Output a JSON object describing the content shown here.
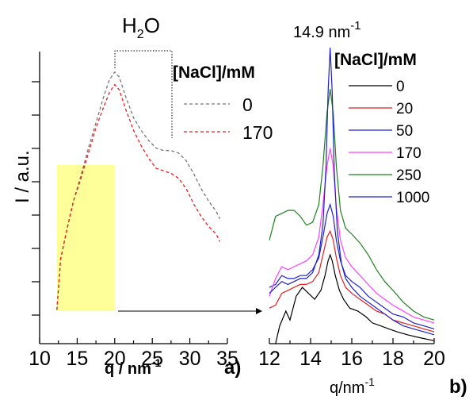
{
  "chart_data": [
    {
      "type": "line",
      "panel_label": "a)",
      "title": "H",
      "title_sub": "2",
      "title_tail": "O",
      "xlabel": "q / nm",
      "xlabel_sup": "-1",
      "ylabel": "I / a.u.",
      "xlim": [
        10,
        35
      ],
      "xticks": [
        10,
        15,
        20,
        25,
        30,
        35
      ],
      "y_ticks_labeled": false,
      "legend_title": "[NaCl]/mM",
      "legend_position": "top-right",
      "series": [
        {
          "name": "0",
          "color": "#777777",
          "dash": "4,3",
          "x": [
            12.3,
            12.8,
            13.5,
            14.5,
            15.5,
            16.5,
            17.5,
            18.5,
            19.3,
            20.0,
            20.6,
            21.5,
            22.5,
            23.5,
            24.5,
            25.5,
            26.5,
            27.5,
            28.5,
            29.5,
            30.5,
            31.5,
            32.5,
            33.5,
            34.0
          ],
          "y": [
            0.02,
            0.22,
            0.32,
            0.45,
            0.55,
            0.66,
            0.76,
            0.86,
            0.93,
            0.96,
            0.94,
            0.86,
            0.78,
            0.73,
            0.69,
            0.66,
            0.65,
            0.65,
            0.64,
            0.61,
            0.56,
            0.5,
            0.45,
            0.41,
            0.38
          ]
        },
        {
          "name": "170",
          "color": "#e02020",
          "dash": "4,3",
          "x": [
            12.3,
            12.8,
            13.5,
            14.5,
            15.5,
            16.5,
            17.5,
            18.5,
            19.3,
            20.0,
            20.6,
            21.5,
            22.5,
            23.5,
            24.5,
            25.5,
            26.5,
            27.5,
            28.5,
            29.5,
            30.5,
            31.5,
            32.5,
            33.5,
            34.0
          ],
          "y": [
            0.02,
            0.22,
            0.32,
            0.45,
            0.54,
            0.64,
            0.74,
            0.82,
            0.88,
            0.91,
            0.89,
            0.81,
            0.73,
            0.67,
            0.62,
            0.58,
            0.57,
            0.56,
            0.54,
            0.5,
            0.44,
            0.39,
            0.35,
            0.32,
            0.29
          ]
        }
      ],
      "highlight": {
        "x_from": 12.3,
        "x_to": 20.0,
        "color": "#ffff99"
      },
      "annotation": "bracket from q=20 to q=27.5 above the peak; arrow from highlighted region to panel b"
    },
    {
      "type": "line",
      "panel_label": "b)",
      "peak_label": "14.9 nm",
      "peak_label_sup": "-1",
      "xlabel": "q/nm",
      "xlabel_sup": "-1",
      "xlim": [
        12,
        20
      ],
      "xticks": [
        12,
        14,
        16,
        18,
        20
      ],
      "y_ticks_labeled": false,
      "legend_title": "[NaCl]/mM",
      "legend_position": "top-right",
      "series": [
        {
          "name": "0",
          "color": "#000000",
          "x": [
            12.3,
            12.5,
            12.8,
            13.0,
            13.3,
            13.6,
            13.9,
            14.2,
            14.5,
            14.7,
            14.85,
            14.95,
            15.05,
            15.2,
            15.4,
            15.6,
            15.9,
            16.3,
            16.7,
            17.0,
            17.4,
            17.8,
            18.2,
            18.7,
            19.3,
            20.0
          ],
          "y": [
            0.0,
            0.06,
            0.11,
            0.08,
            0.16,
            0.19,
            0.17,
            0.15,
            0.18,
            0.23,
            0.28,
            0.3,
            0.28,
            0.23,
            0.18,
            0.15,
            0.12,
            0.11,
            0.09,
            0.07,
            0.06,
            0.05,
            0.04,
            0.03,
            0.02,
            0.01
          ]
        },
        {
          "name": "20",
          "color": "#e02020",
          "x": [
            12.0,
            12.3,
            12.6,
            12.9,
            13.2,
            13.5,
            13.8,
            14.1,
            14.4,
            14.6,
            14.8,
            14.95,
            15.1,
            15.25,
            15.45,
            15.7,
            16.0,
            16.4,
            16.8,
            17.2,
            17.6,
            18.0,
            18.5,
            19.0,
            19.5,
            20.0
          ],
          "y": [
            0.12,
            0.13,
            0.17,
            0.18,
            0.19,
            0.2,
            0.2,
            0.21,
            0.24,
            0.3,
            0.36,
            0.38,
            0.35,
            0.29,
            0.23,
            0.19,
            0.17,
            0.15,
            0.13,
            0.11,
            0.1,
            0.08,
            0.07,
            0.06,
            0.05,
            0.04
          ]
        },
        {
          "name": "50",
          "color": "#2020c8",
          "x": [
            12.0,
            12.3,
            12.6,
            12.9,
            13.2,
            13.5,
            13.8,
            14.1,
            14.4,
            14.6,
            14.8,
            14.95,
            15.1,
            15.25,
            15.45,
            15.7,
            16.0,
            16.4,
            16.8,
            17.2,
            17.6,
            18.0,
            18.5,
            19.0,
            19.5,
            20.0
          ],
          "y": [
            0.19,
            0.2,
            0.23,
            0.22,
            0.22,
            0.23,
            0.23,
            0.25,
            0.29,
            0.36,
            0.44,
            0.47,
            0.43,
            0.35,
            0.28,
            0.23,
            0.21,
            0.19,
            0.16,
            0.14,
            0.12,
            0.1,
            0.09,
            0.07,
            0.06,
            0.05
          ]
        },
        {
          "name": "170",
          "color": "#ff40ff",
          "x": [
            12.0,
            12.3,
            12.6,
            12.9,
            13.2,
            13.5,
            13.8,
            14.1,
            14.4,
            14.6,
            14.8,
            14.95,
            15.1,
            15.25,
            15.45,
            15.7,
            16.0,
            16.4,
            16.8,
            17.2,
            17.6,
            18.0,
            18.5,
            19.0,
            19.5,
            20.0
          ],
          "y": [
            0.16,
            0.22,
            0.26,
            0.25,
            0.26,
            0.27,
            0.28,
            0.3,
            0.36,
            0.47,
            0.6,
            0.66,
            0.6,
            0.46,
            0.35,
            0.29,
            0.26,
            0.23,
            0.2,
            0.17,
            0.15,
            0.13,
            0.11,
            0.09,
            0.08,
            0.07
          ]
        },
        {
          "name": "250",
          "color": "#208020",
          "x": [
            12.0,
            12.3,
            12.6,
            12.9,
            13.2,
            13.5,
            13.8,
            14.1,
            14.4,
            14.6,
            14.8,
            14.95,
            15.1,
            15.25,
            15.45,
            15.7,
            16.0,
            16.4,
            16.8,
            17.2,
            17.6,
            18.0,
            18.5,
            19.0,
            19.5,
            20.0
          ],
          "y": [
            0.35,
            0.43,
            0.44,
            0.45,
            0.45,
            0.43,
            0.4,
            0.41,
            0.47,
            0.6,
            0.78,
            0.86,
            0.78,
            0.6,
            0.45,
            0.39,
            0.37,
            0.34,
            0.3,
            0.25,
            0.21,
            0.18,
            0.14,
            0.11,
            0.09,
            0.08
          ]
        },
        {
          "name": "1000",
          "color": "#2020c8",
          "x": [
            12.0,
            12.3,
            12.6,
            12.9,
            13.2,
            13.5,
            13.8,
            14.1,
            14.4,
            14.6,
            14.75,
            14.85,
            14.95,
            15.05,
            15.15,
            15.3,
            15.5,
            15.7,
            16.0,
            16.4,
            16.8,
            17.2,
            17.6,
            18.0,
            18.5,
            19.0,
            19.5,
            20.0
          ],
          "y": [
            0.17,
            0.19,
            0.21,
            0.2,
            0.21,
            0.22,
            0.22,
            0.24,
            0.3,
            0.4,
            0.6,
            0.85,
            1.0,
            0.85,
            0.58,
            0.38,
            0.27,
            0.22,
            0.19,
            0.16,
            0.14,
            0.12,
            0.1,
            0.08,
            0.06,
            0.05,
            0.04,
            0.03
          ]
        }
      ]
    }
  ]
}
